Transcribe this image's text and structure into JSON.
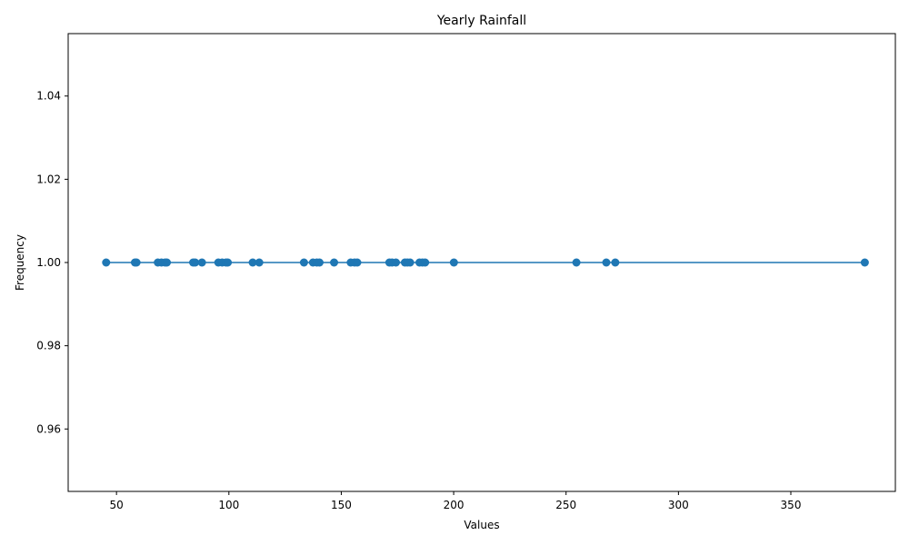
{
  "chart_data": {
    "type": "line",
    "title": "Yearly Rainfall",
    "xlabel": "Values",
    "ylabel": "Frequency",
    "xlim": [
      28.5,
      396.5
    ],
    "ylim": [
      0.945,
      1.055
    ],
    "x_ticks": [
      50,
      100,
      150,
      200,
      250,
      300,
      350
    ],
    "y_ticks": [
      0.96,
      0.98,
      1.0,
      1.02,
      1.04
    ],
    "y_tick_labels": [
      "0.96",
      "0.98",
      "1.00",
      "1.02",
      "1.04"
    ],
    "grid": false,
    "series": [
      {
        "color": "#1f77b4",
        "marker": "circle",
        "points": [
          {
            "x": 45.4,
            "y": 1
          },
          {
            "x": 58.2,
            "y": 1
          },
          {
            "x": 58.9,
            "y": 1
          },
          {
            "x": 68.4,
            "y": 1
          },
          {
            "x": 70.0,
            "y": 1
          },
          {
            "x": 71.6,
            "y": 1
          },
          {
            "x": 72.4,
            "y": 1
          },
          {
            "x": 84.1,
            "y": 1
          },
          {
            "x": 85.0,
            "y": 1
          },
          {
            "x": 88.0,
            "y": 1
          },
          {
            "x": 95.3,
            "y": 1
          },
          {
            "x": 97.0,
            "y": 1
          },
          {
            "x": 98.7,
            "y": 1
          },
          {
            "x": 99.5,
            "y": 1
          },
          {
            "x": 110.6,
            "y": 1
          },
          {
            "x": 113.5,
            "y": 1
          },
          {
            "x": 133.4,
            "y": 1
          },
          {
            "x": 137.4,
            "y": 1
          },
          {
            "x": 139.1,
            "y": 1
          },
          {
            "x": 140.3,
            "y": 1
          },
          {
            "x": 146.8,
            "y": 1
          },
          {
            "x": 154.2,
            "y": 1
          },
          {
            "x": 155.9,
            "y": 1
          },
          {
            "x": 157.1,
            "y": 1
          },
          {
            "x": 171.4,
            "y": 1
          },
          {
            "x": 172.6,
            "y": 1
          },
          {
            "x": 174.3,
            "y": 1
          },
          {
            "x": 178.3,
            "y": 1
          },
          {
            "x": 179.4,
            "y": 1
          },
          {
            "x": 180.6,
            "y": 1
          },
          {
            "x": 184.8,
            "y": 1
          },
          {
            "x": 186.1,
            "y": 1
          },
          {
            "x": 187.3,
            "y": 1
          },
          {
            "x": 200.1,
            "y": 1
          },
          {
            "x": 254.6,
            "y": 1
          },
          {
            "x": 267.9,
            "y": 1
          },
          {
            "x": 271.9,
            "y": 1
          },
          {
            "x": 382.9,
            "y": 1
          }
        ]
      }
    ]
  }
}
